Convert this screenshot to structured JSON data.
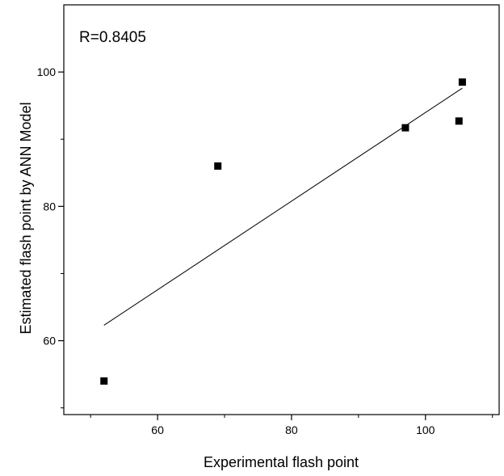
{
  "chart_data": {
    "type": "scatter",
    "xlabel": "Experimental flash point",
    "ylabel": "Estimated flash point by ANN Model",
    "annotation": "R=0.8405",
    "xlim": [
      46,
      111
    ],
    "ylim": [
      49,
      110
    ],
    "x_ticks_major": [
      60,
      80,
      100
    ],
    "x_ticks_minor": [
      50,
      70,
      90,
      110
    ],
    "y_ticks_major": [
      60,
      80,
      100
    ],
    "y_ticks_minor": [
      50,
      70,
      90
    ],
    "grid": false,
    "points": [
      {
        "x": 52,
        "y": 54
      },
      {
        "x": 69,
        "y": 86
      },
      {
        "x": 97,
        "y": 91.7
      },
      {
        "x": 105,
        "y": 92.7
      },
      {
        "x": 105.5,
        "y": 98.5
      }
    ],
    "fit_line": {
      "x": [
        52,
        105.5
      ],
      "y": [
        62.3,
        97.6
      ]
    },
    "colors": {
      "marker": "#000000",
      "line": "#000000",
      "axes": "#000000"
    }
  }
}
